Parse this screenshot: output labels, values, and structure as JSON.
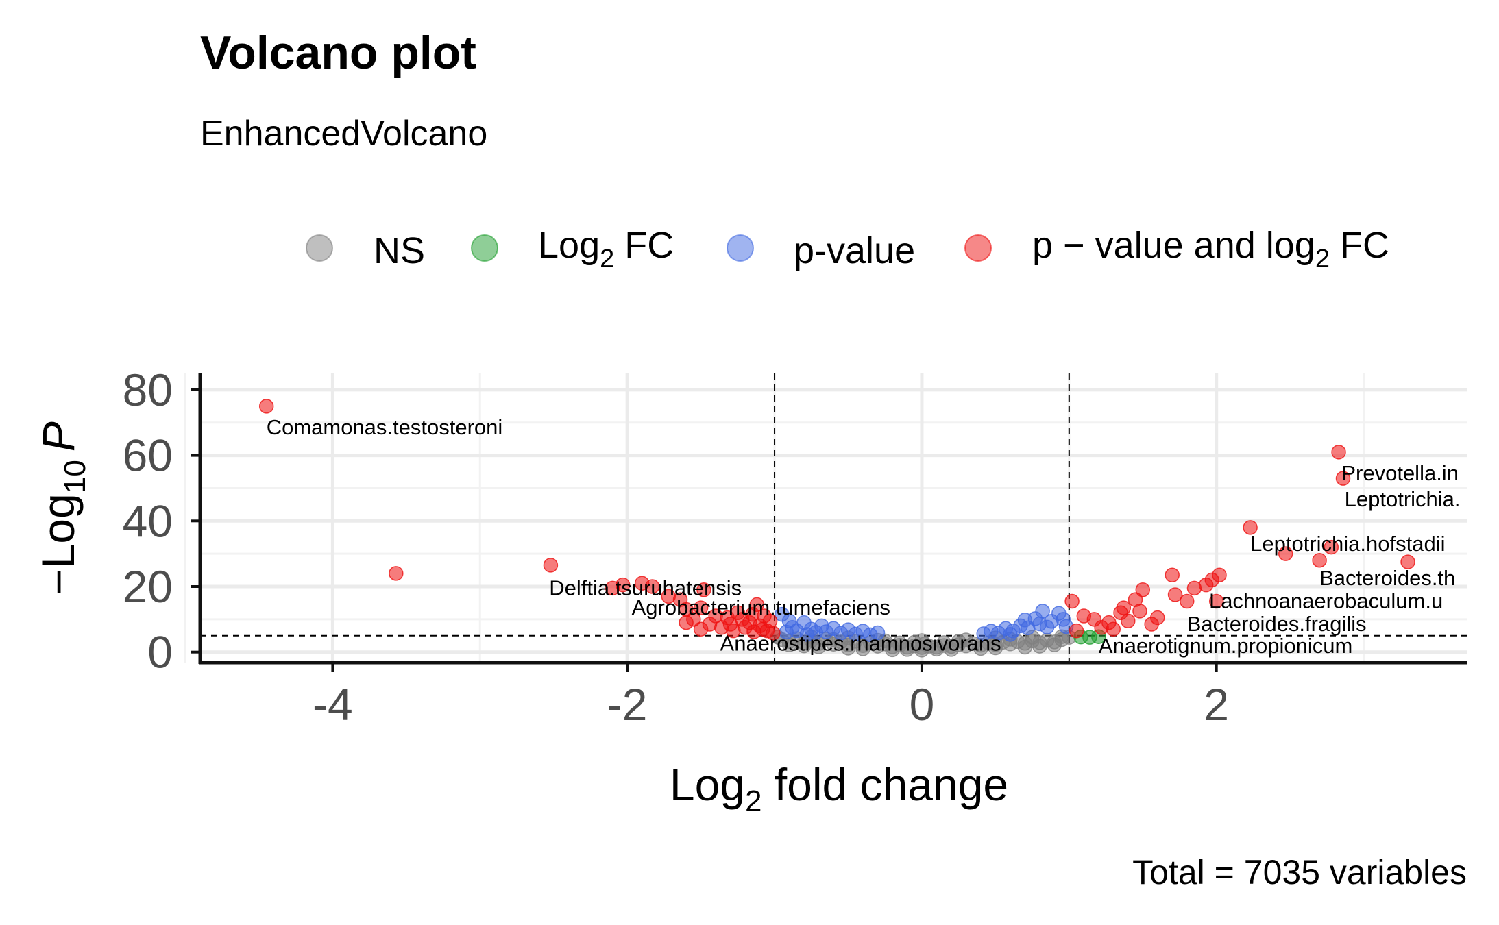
{
  "chart_data": {
    "type": "scatter",
    "title": "Volcano plot",
    "subtitle": "EnhancedVolcano",
    "xlabel": {
      "base": "Log",
      "sub": "2",
      "rest": " fold change"
    },
    "ylabel": {
      "minus": "−",
      "base": "Log",
      "sub": "10",
      "rest": "P"
    },
    "caption": "Total = 7035 variables",
    "xlim": [
      -4.9,
      3.7
    ],
    "ylim": [
      -3.2,
      85
    ],
    "x_ticks": [
      {
        "value": -4,
        "label": "-4"
      },
      {
        "value": -2,
        "label": "-2"
      },
      {
        "value": 0,
        "label": "0"
      },
      {
        "value": 2,
        "label": "2"
      }
    ],
    "y_ticks": [
      {
        "value": 0,
        "label": "0"
      },
      {
        "value": 20,
        "label": "20"
      },
      {
        "value": 40,
        "label": "40"
      },
      {
        "value": 60,
        "label": "60"
      },
      {
        "value": 80,
        "label": "80"
      }
    ],
    "fc_cutoff": [
      -1,
      1
    ],
    "p_cutoff": 5,
    "grid": true,
    "legend_position": "top",
    "legend": [
      {
        "key": "NS",
        "type": "plain",
        "text": "NS",
        "color": "#808080"
      },
      {
        "key": "FC",
        "type": "log2fc",
        "base": "Log",
        "sub": "2",
        "rest": " FC",
        "color": "#1f9e2f"
      },
      {
        "key": "P",
        "type": "plain",
        "text": "p-value",
        "color": "#4169e1"
      },
      {
        "key": "P_FC",
        "type": "both",
        "pre": "p − value and log",
        "sub": "2",
        "rest": " FC",
        "color": "#ee1111"
      }
    ],
    "series": [
      {
        "key": "NS",
        "points": [
          [
            -0.95,
            3.8
          ],
          [
            -0.9,
            3.2
          ],
          [
            -0.85,
            4.1
          ],
          [
            -0.8,
            2.8
          ],
          [
            -0.75,
            3.5
          ],
          [
            -0.7,
            2.6
          ],
          [
            -0.65,
            3.9
          ],
          [
            -0.6,
            2.4
          ],
          [
            -0.55,
            3.1
          ],
          [
            -0.5,
            2.2
          ],
          [
            -0.45,
            3.3
          ],
          [
            -0.4,
            2.0
          ],
          [
            -0.35,
            2.7
          ],
          [
            -0.3,
            1.8
          ],
          [
            -0.25,
            2.5
          ],
          [
            -0.2,
            1.6
          ],
          [
            -0.15,
            2.1
          ],
          [
            -0.1,
            1.5
          ],
          [
            -0.05,
            1.9
          ],
          [
            0.0,
            1.4
          ],
          [
            0.05,
            1.8
          ],
          [
            0.1,
            1.5
          ],
          [
            0.15,
            2.0
          ],
          [
            0.2,
            1.7
          ],
          [
            0.25,
            2.3
          ],
          [
            0.3,
            1.9
          ],
          [
            0.35,
            2.6
          ],
          [
            0.4,
            2.1
          ],
          [
            0.45,
            2.8
          ],
          [
            0.5,
            2.3
          ],
          [
            0.55,
            3.0
          ],
          [
            0.6,
            2.5
          ],
          [
            0.65,
            3.2
          ],
          [
            0.7,
            2.7
          ],
          [
            0.75,
            3.4
          ],
          [
            0.8,
            2.9
          ],
          [
            0.85,
            3.6
          ],
          [
            0.9,
            3.1
          ],
          [
            0.95,
            3.8
          ],
          [
            -0.6,
            3.8
          ],
          [
            -0.3,
            3.6
          ],
          [
            0.0,
            3.5
          ],
          [
            0.3,
            3.7
          ],
          [
            0.6,
            3.9
          ],
          [
            -0.8,
            1.9
          ],
          [
            -0.5,
            1.2
          ],
          [
            -0.2,
            0.7
          ],
          [
            0.0,
            0.6
          ],
          [
            0.2,
            0.8
          ],
          [
            0.5,
            1.3
          ],
          [
            0.8,
            1.8
          ],
          [
            -0.9,
            2.2
          ],
          [
            -0.7,
            1.6
          ],
          [
            -0.4,
            1.0
          ],
          [
            -0.1,
            0.8
          ],
          [
            0.1,
            0.9
          ],
          [
            0.4,
            1.1
          ],
          [
            0.7,
            1.5
          ],
          [
            0.9,
            2.2
          ],
          [
            -0.05,
            3.0
          ],
          [
            0.02,
            2.5
          ],
          [
            -0.15,
            2.8
          ],
          [
            0.15,
            2.9
          ],
          [
            0.25,
            3.3
          ],
          [
            -0.25,
            3.4
          ],
          [
            0.5,
            4.3
          ],
          [
            -0.5,
            4.3
          ],
          [
            0.75,
            4.5
          ],
          [
            -0.75,
            4.6
          ],
          [
            0.95,
            4.7
          ],
          [
            1.0,
            4.5
          ],
          [
            -0.98,
            4.6
          ]
        ]
      },
      {
        "key": "P",
        "points": [
          [
            -0.95,
            11.5
          ],
          [
            -0.9,
            9.5
          ],
          [
            -0.88,
            7.5
          ],
          [
            -0.85,
            6.5
          ],
          [
            -0.8,
            9.0
          ],
          [
            -0.75,
            7.0
          ],
          [
            -0.72,
            6.0
          ],
          [
            -0.68,
            8.0
          ],
          [
            -0.65,
            6.2
          ],
          [
            -0.6,
            7.2
          ],
          [
            -0.55,
            5.8
          ],
          [
            -0.5,
            6.8
          ],
          [
            -0.45,
            5.5
          ],
          [
            -0.4,
            6.4
          ],
          [
            -0.35,
            5.3
          ],
          [
            -0.3,
            5.9
          ],
          [
            -0.92,
            6.1
          ],
          [
            -0.78,
            5.4
          ],
          [
            0.42,
            5.6
          ],
          [
            0.47,
            6.4
          ],
          [
            0.52,
            5.8
          ],
          [
            0.57,
            7.2
          ],
          [
            0.62,
            6.5
          ],
          [
            0.67,
            8.0
          ],
          [
            0.7,
            9.8
          ],
          [
            0.72,
            7.4
          ],
          [
            0.77,
            10.2
          ],
          [
            0.8,
            8.6
          ],
          [
            0.82,
            12.5
          ],
          [
            0.85,
            7.6
          ],
          [
            0.88,
            9.4
          ],
          [
            0.93,
            11.8
          ],
          [
            0.96,
            10.0
          ],
          [
            0.98,
            7.8
          ],
          [
            0.6,
            5.4
          ]
        ]
      },
      {
        "key": "FC",
        "points": [
          [
            1.08,
            4.6
          ],
          [
            1.14,
            4.5
          ],
          [
            1.2,
            4.7
          ]
        ]
      },
      {
        "key": "P_FC",
        "points": [
          [
            -4.45,
            75
          ],
          [
            -3.57,
            24
          ],
          [
            -2.52,
            26.5
          ],
          [
            -2.1,
            19.5
          ],
          [
            -2.03,
            20.5
          ],
          [
            -1.9,
            21
          ],
          [
            -1.83,
            20
          ],
          [
            -1.72,
            17
          ],
          [
            -1.64,
            16
          ],
          [
            -1.6,
            13
          ],
          [
            -1.55,
            10
          ],
          [
            -1.5,
            13.5
          ],
          [
            -1.48,
            19
          ],
          [
            -1.44,
            8.5
          ],
          [
            -1.4,
            11
          ],
          [
            -1.36,
            7.5
          ],
          [
            -1.32,
            10.5
          ],
          [
            -1.28,
            6.5
          ],
          [
            -1.25,
            12
          ],
          [
            -1.2,
            7.5
          ],
          [
            -1.17,
            9
          ],
          [
            -1.14,
            6.2
          ],
          [
            -1.12,
            14.5
          ],
          [
            -1.1,
            8
          ],
          [
            -1.07,
            11
          ],
          [
            -1.05,
            6.5
          ],
          [
            -1.03,
            9.5
          ],
          [
            -1.01,
            5.8
          ],
          [
            -1.6,
            9
          ],
          [
            -1.5,
            7
          ],
          [
            -1.3,
            8.5
          ],
          [
            -1.22,
            10
          ],
          [
            -1.15,
            11.5
          ],
          [
            -1.08,
            7
          ],
          [
            1.02,
            15.5
          ],
          [
            1.05,
            6.5
          ],
          [
            1.1,
            11
          ],
          [
            1.17,
            10
          ],
          [
            1.22,
            7.5
          ],
          [
            1.27,
            9
          ],
          [
            1.3,
            7
          ],
          [
            1.35,
            12
          ],
          [
            1.37,
            13.5
          ],
          [
            1.4,
            9.5
          ],
          [
            1.45,
            16
          ],
          [
            1.48,
            12.5
          ],
          [
            1.5,
            19
          ],
          [
            1.56,
            8.5
          ],
          [
            1.6,
            10.5
          ],
          [
            1.7,
            23.5
          ],
          [
            1.72,
            17.5
          ],
          [
            1.8,
            15.5
          ],
          [
            1.85,
            19.5
          ],
          [
            1.93,
            20.5
          ],
          [
            1.97,
            22
          ],
          [
            2.0,
            15.5
          ],
          [
            2.02,
            23.5
          ],
          [
            2.23,
            38
          ],
          [
            2.47,
            30
          ],
          [
            2.7,
            28
          ],
          [
            2.78,
            32
          ],
          [
            2.83,
            61
          ],
          [
            2.86,
            53
          ],
          [
            3.3,
            27.5
          ]
        ]
      }
    ],
    "labels": [
      {
        "text": "Comamonas.testosteroni",
        "x": -4.45,
        "y": 68.5,
        "anchor": "start"
      },
      {
        "text": "Delftia.tsuruhatensis",
        "x": -2.53,
        "y": 19.5,
        "anchor": "start"
      },
      {
        "text": "Agrobacterium.tumefaciens",
        "x": -1.97,
        "y": 13.5,
        "anchor": "start"
      },
      {
        "text": "Anaerostipes.rhamnosivorans",
        "x": -1.37,
        "y": 2.5,
        "anchor": "start"
      },
      {
        "text": "Prevotella.in",
        "x": 2.85,
        "y": 54.5,
        "anchor": "start"
      },
      {
        "text": "Leptotrichia.",
        "x": 2.87,
        "y": 46.5,
        "anchor": "start"
      },
      {
        "text": "Leptotrichia.hofstadii",
        "x": 2.23,
        "y": 33.0,
        "anchor": "start"
      },
      {
        "text": "Bacteroides.th",
        "x": 2.7,
        "y": 22.5,
        "anchor": "start"
      },
      {
        "text": "Lachnoanaerobaculum.u",
        "x": 1.95,
        "y": 15.5,
        "anchor": "start"
      },
      {
        "text": "Bacteroides.fragilis",
        "x": 1.8,
        "y": 8.5,
        "anchor": "start"
      },
      {
        "text": "Anaerotignum.propionicum",
        "x": 1.2,
        "y": 1.8,
        "anchor": "start"
      }
    ]
  }
}
